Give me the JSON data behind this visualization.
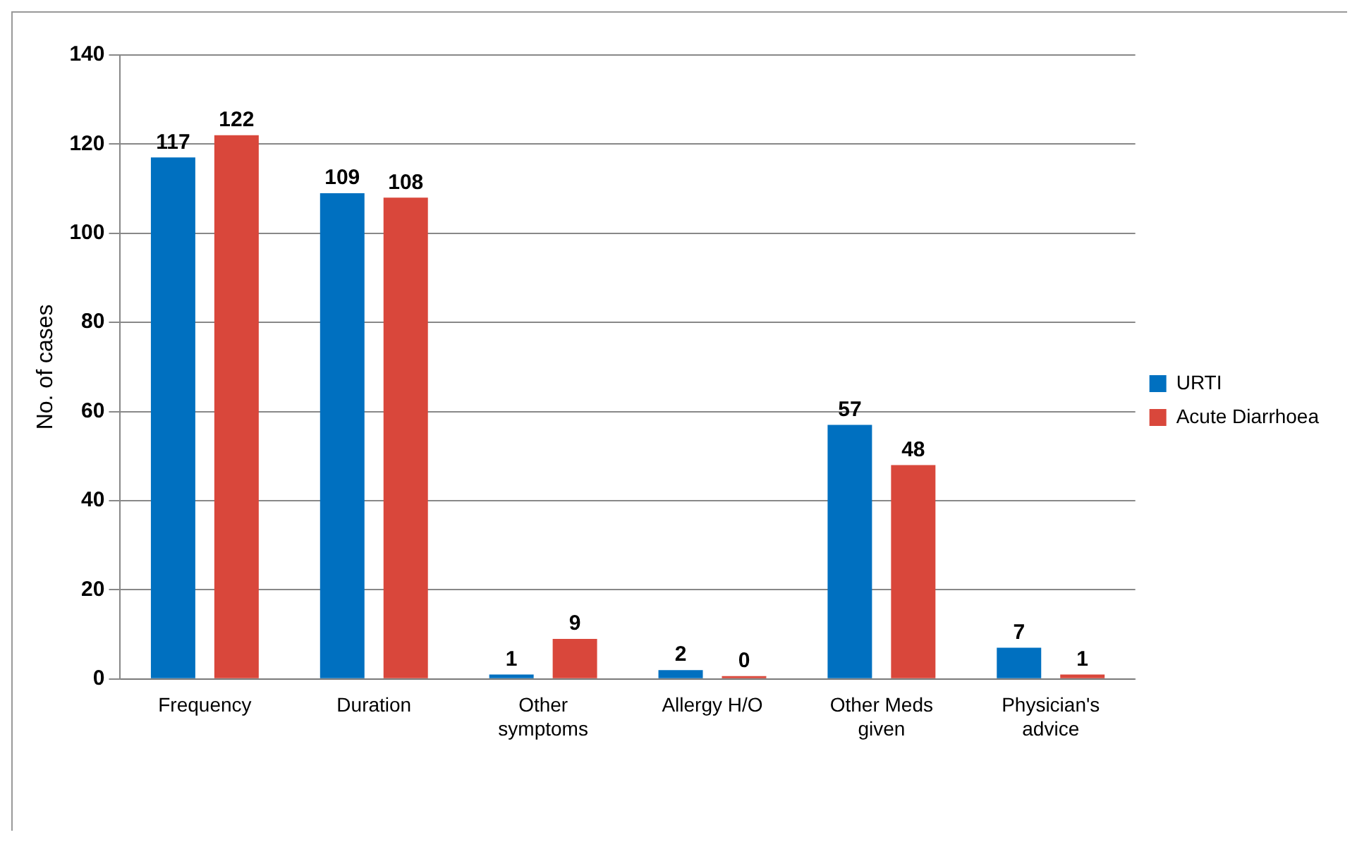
{
  "chart_data": {
    "type": "bar",
    "ylabel": "No. of cases",
    "categories": [
      "Frequency",
      "Duration",
      "Other symptoms",
      "Allergy H/O",
      "Other Meds given",
      "Physician's advice"
    ],
    "series": [
      {
        "name": "URTI",
        "color": "#0070c0",
        "values": [
          117,
          109,
          1,
          2,
          57,
          7
        ]
      },
      {
        "name": "Acute Diarrhoea",
        "color": "#d9473b",
        "values": [
          122,
          108,
          9,
          0,
          48,
          1
        ]
      }
    ],
    "ylim": [
      0,
      140
    ],
    "yticks": [
      0,
      20,
      40,
      60,
      80,
      100,
      120,
      140
    ],
    "grid": "y",
    "legend": "right",
    "data_labels": true
  }
}
